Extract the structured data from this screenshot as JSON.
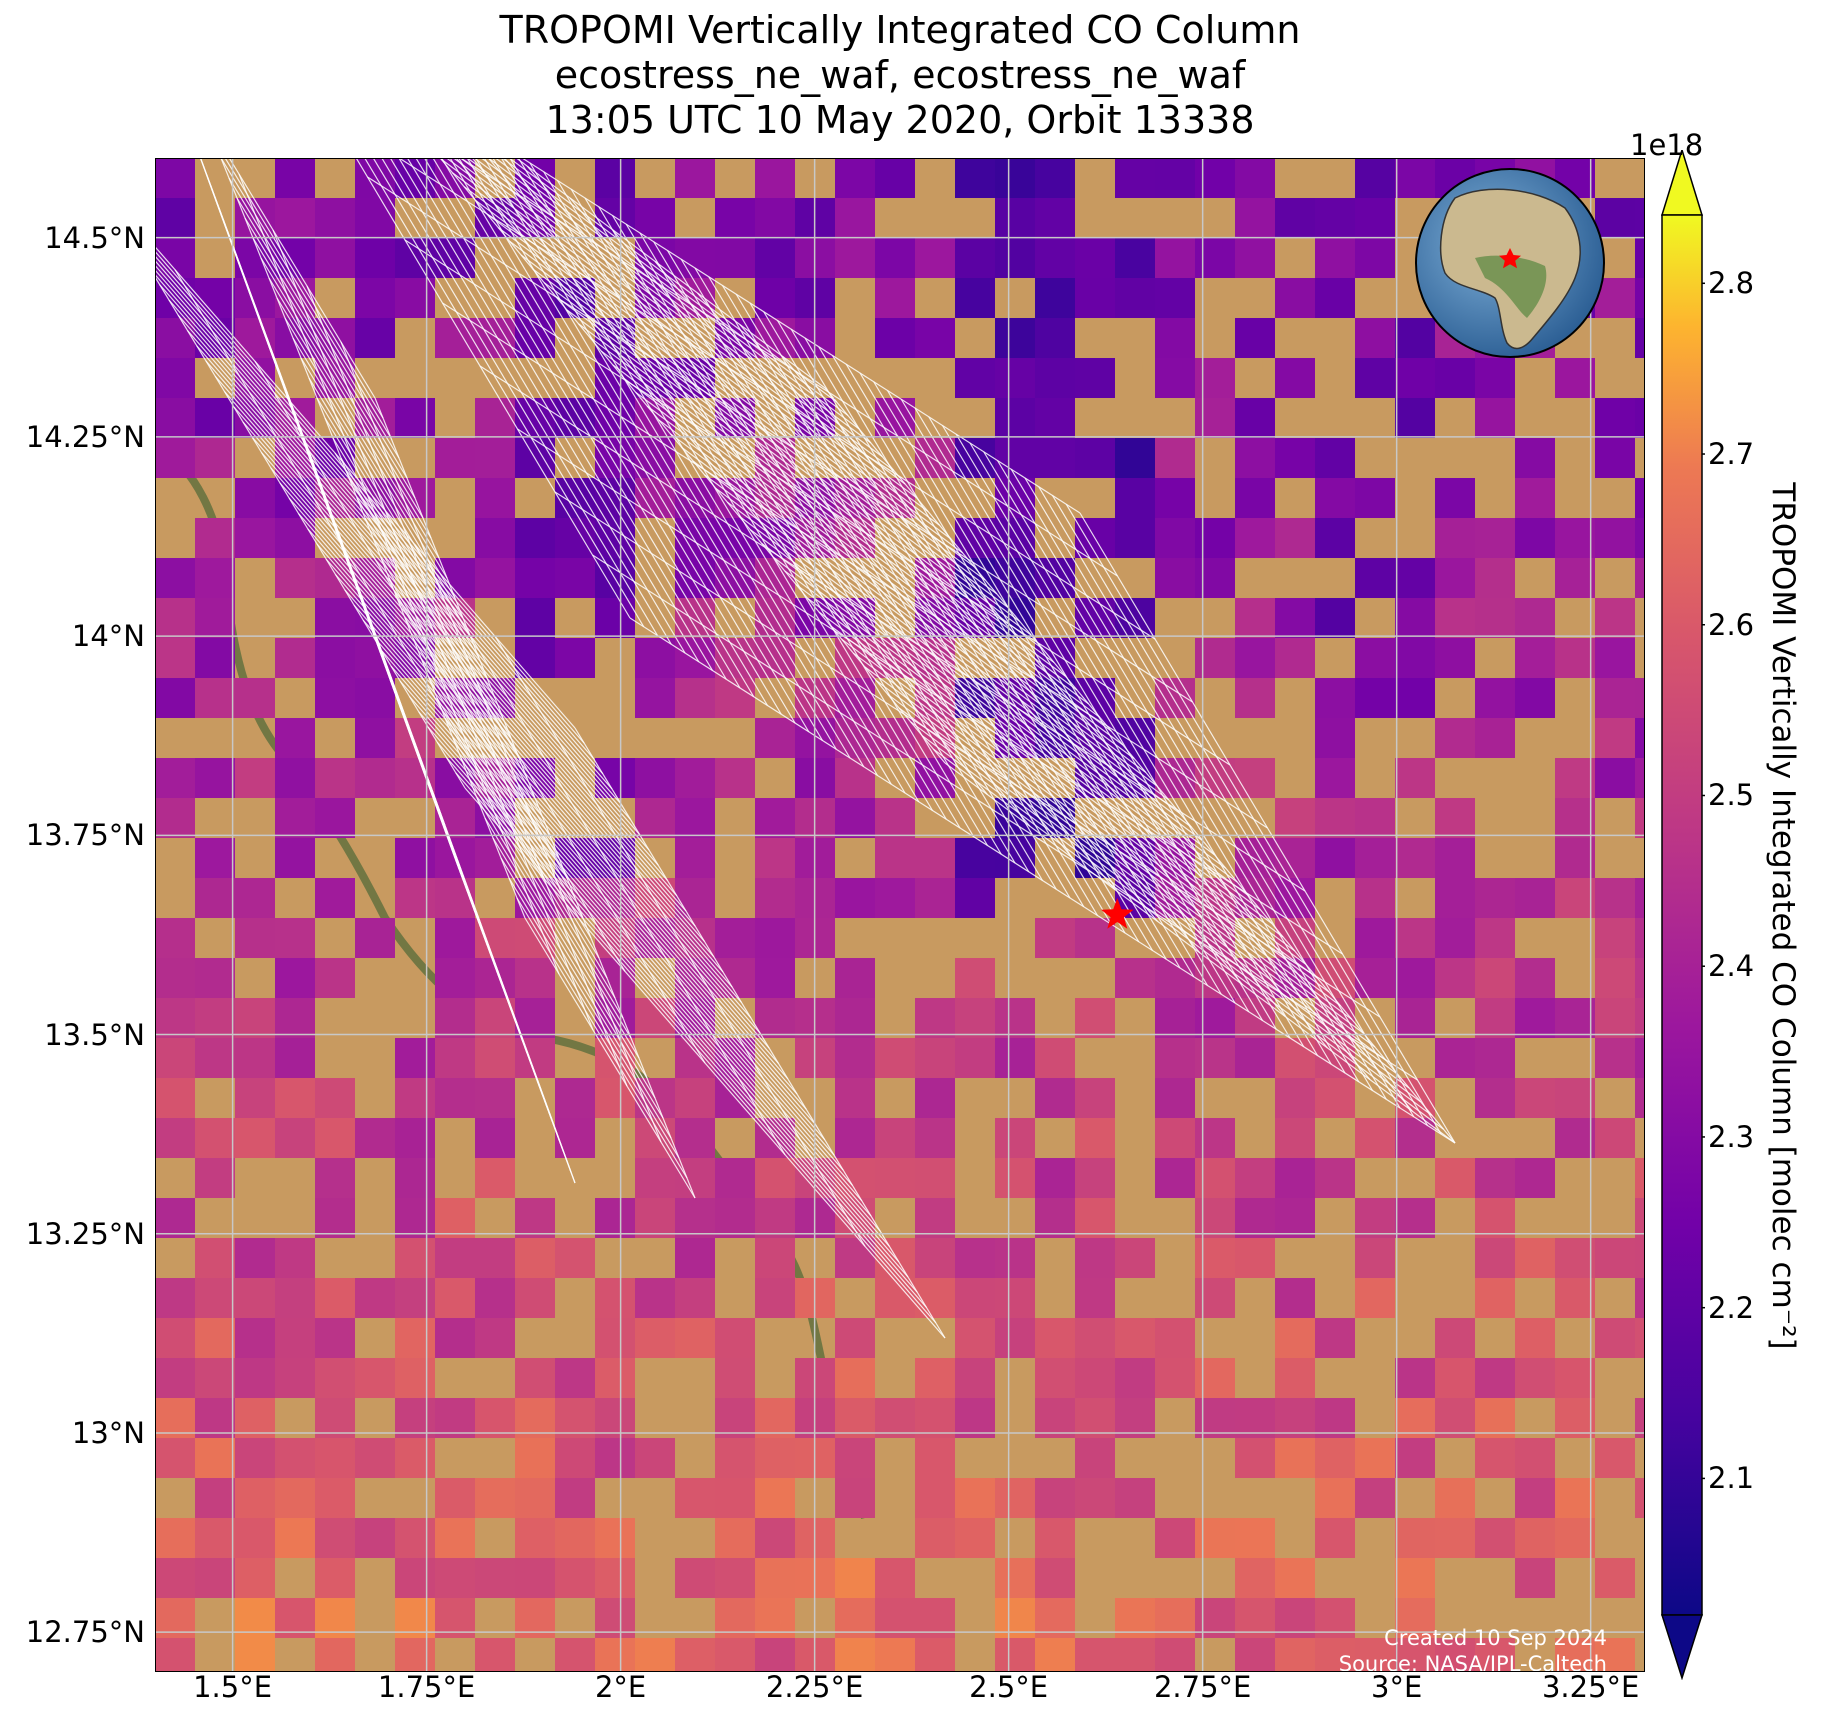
{
  "title": {
    "line1": "TROPOMI Vertically Integrated CO Column",
    "line2": "ecostress_ne_waf, ecostress_ne_waf",
    "line3": "13:05 UTC 10 May 2020, Orbit 13338"
  },
  "map": {
    "lon_range": [
      1.4,
      3.32
    ],
    "lat_range": [
      12.7,
      14.6
    ],
    "lat_ticks": [
      "14.5°N",
      "14.25°N",
      "14°N",
      "13.75°N",
      "13.5°N",
      "13.25°N",
      "13°N",
      "12.75°N"
    ],
    "lat_tick_values": [
      14.5,
      14.25,
      14.0,
      13.75,
      13.5,
      13.25,
      13.0,
      12.75
    ],
    "lon_ticks": [
      "1.5°E",
      "1.75°E",
      "2°E",
      "2.25°E",
      "2.5°E",
      "2.75°E",
      "3°E",
      "3.25°E"
    ],
    "lon_tick_values": [
      1.5,
      1.75,
      2.0,
      2.25,
      2.5,
      2.75,
      3.0,
      3.25
    ],
    "site_marker": {
      "lon": 2.64,
      "lat": 13.65,
      "color": "#ff0000"
    },
    "gridlines": true
  },
  "colorbar": {
    "label": "TROPOMI Vertically Integrated CO Column [molec cm⁻²]",
    "exponent": "1e18",
    "range": [
      2.02,
      2.84
    ],
    "ticks": [
      "2.1",
      "2.2",
      "2.3",
      "2.4",
      "2.5",
      "2.6",
      "2.7",
      "2.8"
    ],
    "tick_values": [
      2.1,
      2.2,
      2.3,
      2.4,
      2.5,
      2.6,
      2.7,
      2.8
    ],
    "colormap": "plasma",
    "extend": "both"
  },
  "credits": {
    "line1": "Created 10 Sep 2024",
    "line2": "Source: NASA/JPL-Caltech"
  }
}
